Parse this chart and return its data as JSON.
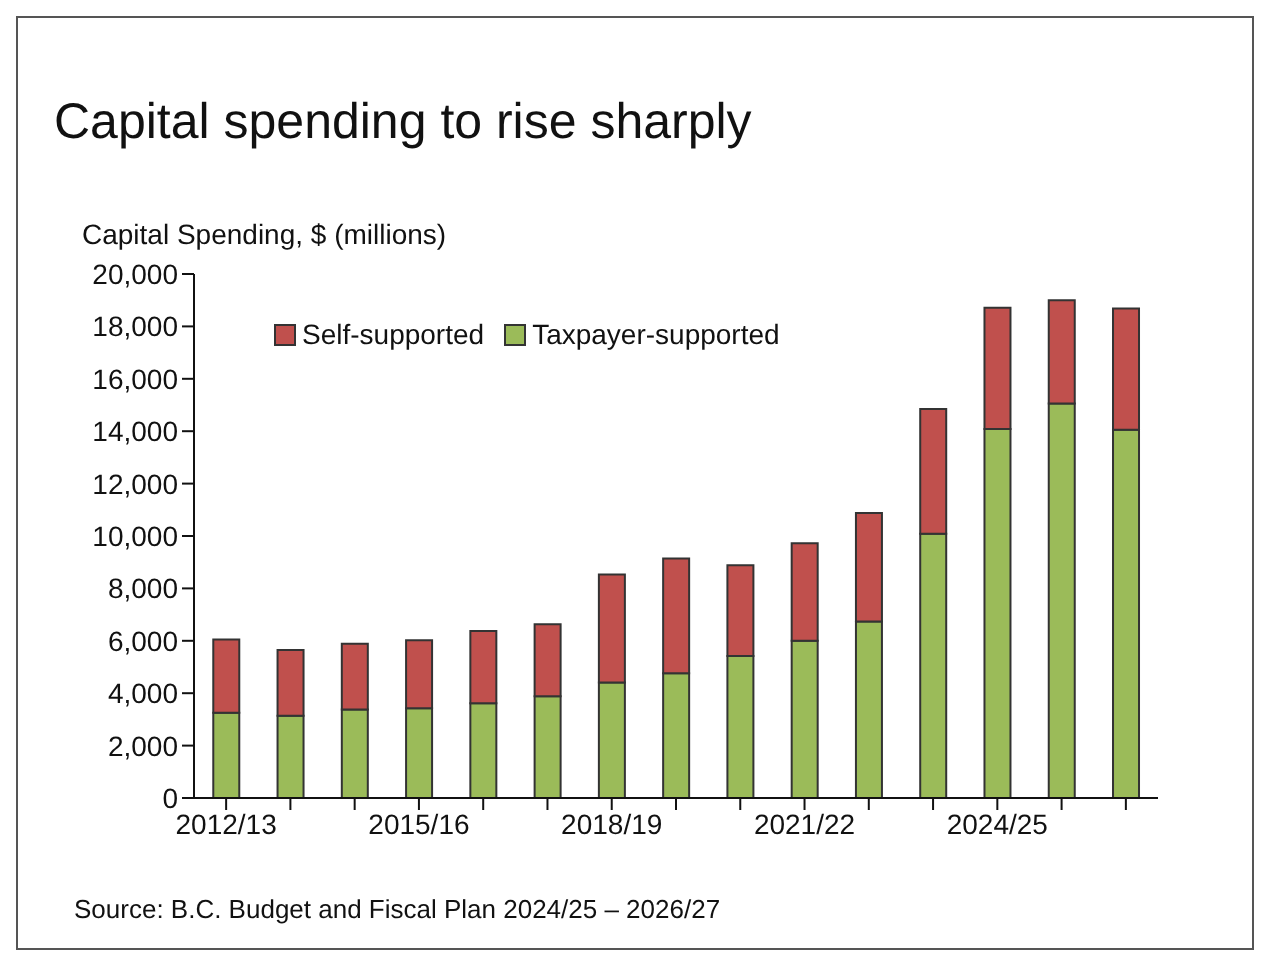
{
  "chart_data": {
    "type": "bar",
    "title": "Capital spending to rise sharply",
    "ylabel": "Capital Spending, $ (millions)",
    "categories": [
      "2012/13",
      null,
      null,
      "2015/16",
      null,
      null,
      "2018/19",
      null,
      null,
      "2021/22",
      null,
      null,
      "2024/25",
      null,
      null
    ],
    "stacked": true,
    "series": [
      {
        "name": "Taxpayer-supported",
        "color": "#9bbb59",
        "values": [
          3250,
          3140,
          3380,
          3430,
          3620,
          3880,
          4410,
          4760,
          5420,
          6000,
          6740,
          10090,
          14080,
          15060,
          14060
        ]
      },
      {
        "name": "Self-supported",
        "color": "#c0504d",
        "values": [
          2800,
          2510,
          2510,
          2590,
          2750,
          2750,
          4120,
          4380,
          3460,
          3720,
          4140,
          4760,
          4630,
          3940,
          4620
        ]
      }
    ],
    "ylim": [
      0,
      20000
    ],
    "yticks": [
      0,
      {
        "value": 2000,
        "label": "2,000"
      },
      {
        "value": 4000,
        "label": "4,000"
      },
      {
        "value": 6000,
        "label": "6,000"
      },
      {
        "value": 8000,
        "label": "8,000"
      },
      {
        "value": 10000,
        "label": "10,000"
      },
      {
        "value": 12000,
        "label": "12,000"
      },
      {
        "value": 14000,
        "label": "14,000"
      },
      {
        "value": 16000,
        "label": "16,000"
      },
      {
        "value": 18000,
        "label": "18,000"
      },
      {
        "value": 20000,
        "label": "20,000"
      }
    ],
    "grid": false,
    "legend": "top left",
    "annotations": [
      "Source:  B.C. Budget and Fiscal Plan 2024/25 – 2026/27"
    ]
  }
}
